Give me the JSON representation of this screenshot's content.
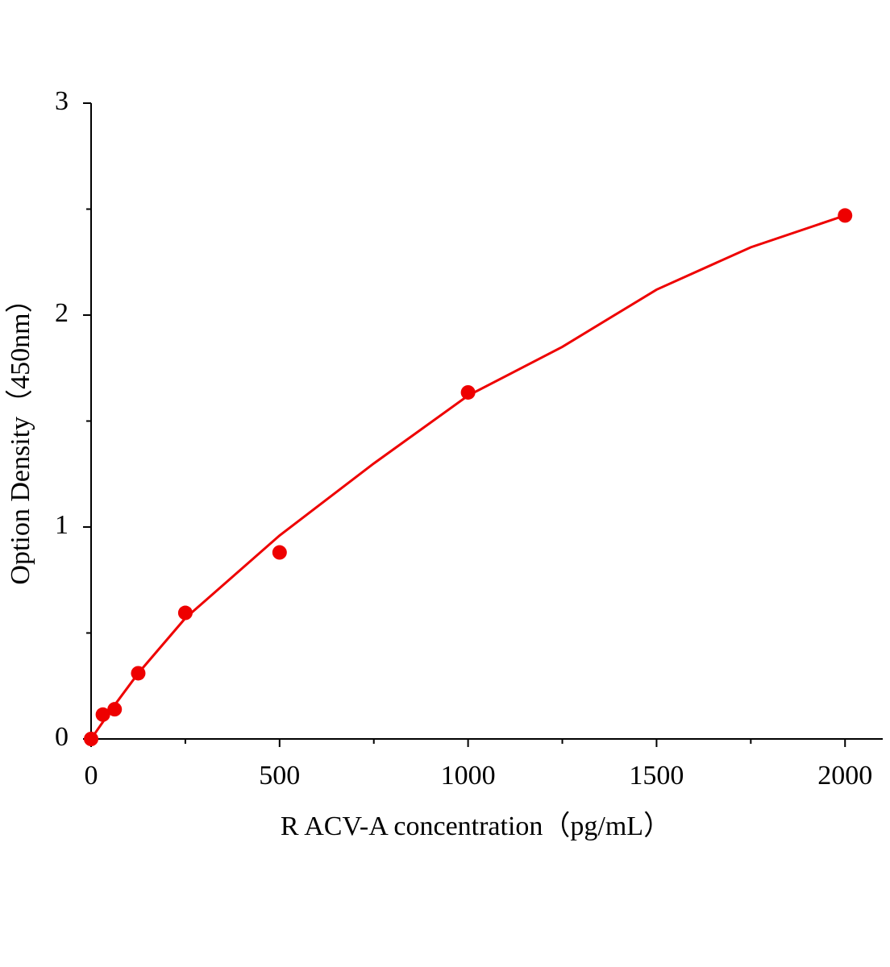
{
  "chart_data": {
    "type": "scatter",
    "xlabel": "R ACV-A  concentration（pg/mL）",
    "ylabel": "Option Density（450nm）",
    "points": {
      "color": "#ee0000",
      "x": [
        0,
        31.25,
        62.5,
        125,
        250,
        500,
        1000,
        2000
      ],
      "y": [
        0.0,
        0.115,
        0.14,
        0.31,
        0.595,
        0.88,
        1.635,
        2.47
      ]
    },
    "fit": {
      "color": "#ee0000",
      "x": [
        0,
        62.5,
        125,
        250,
        500,
        750,
        1000,
        1250,
        1500,
        1750,
        2000
      ],
      "y": [
        0,
        0.16,
        0.31,
        0.57,
        0.96,
        1.3,
        1.62,
        1.85,
        2.12,
        2.32,
        2.47
      ]
    },
    "xlim": [
      0,
      2100
    ],
    "ylim": [
      0,
      3
    ],
    "xticks": [
      0,
      500,
      1000,
      1500,
      2000
    ],
    "xminorticks": [
      250,
      750,
      1250,
      1750
    ],
    "yticks": [
      0,
      1,
      2,
      3
    ],
    "yminorticks": [
      0.5,
      1.5,
      2.5
    ]
  }
}
